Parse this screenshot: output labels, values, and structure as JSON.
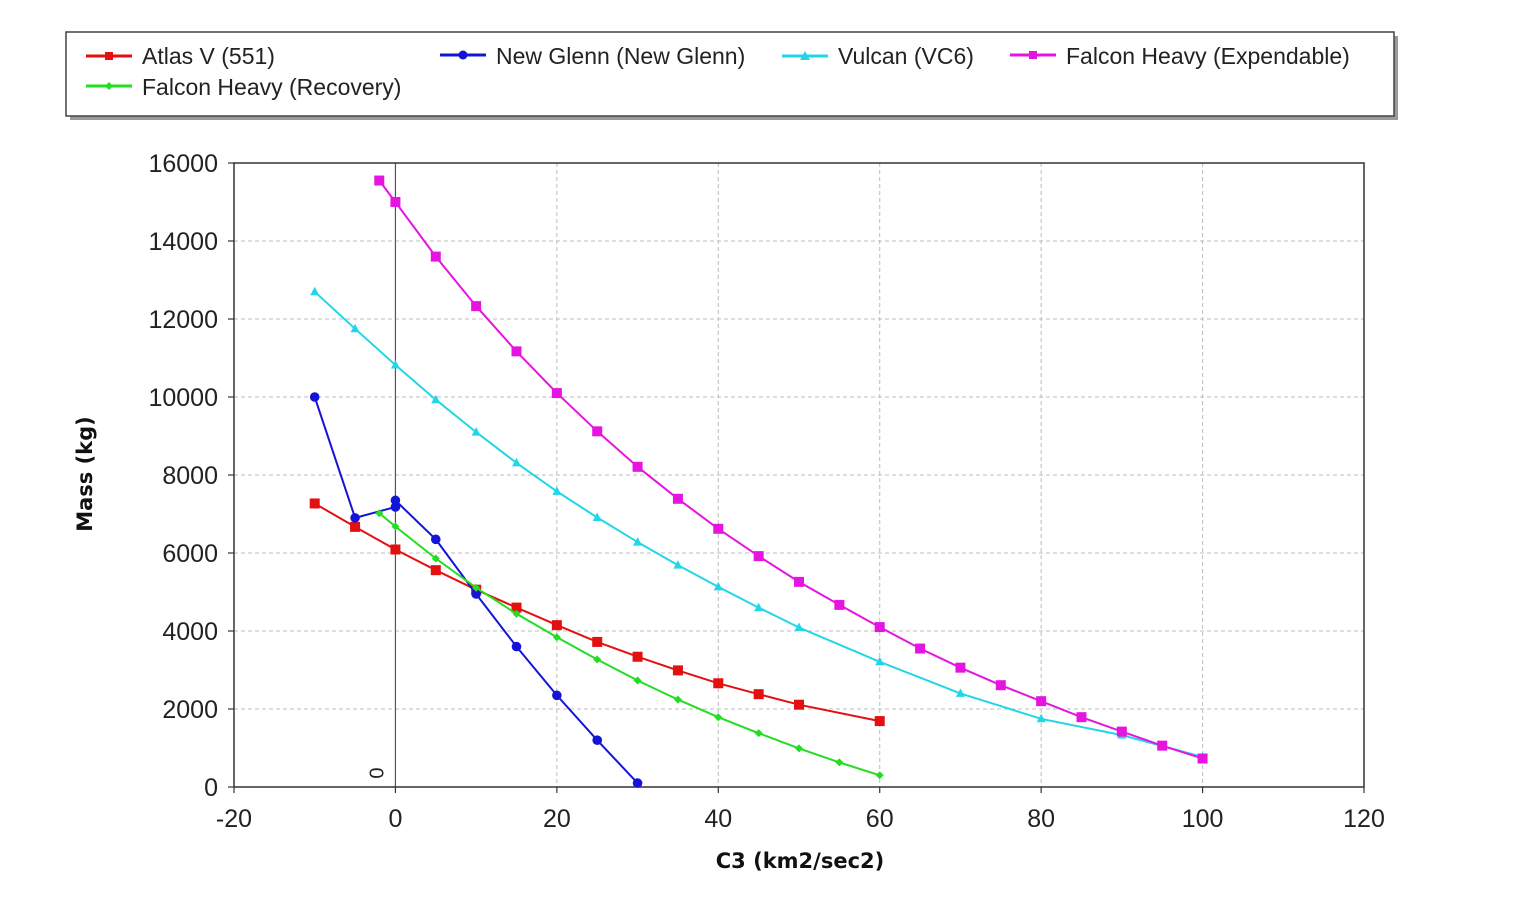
{
  "chart_data": {
    "type": "line",
    "title": "",
    "xlabel": "C3 (km2/sec2)",
    "ylabel": "Mass (kg)",
    "xlim": [
      -20,
      120
    ],
    "ylim": [
      0,
      16000
    ],
    "x_ticks": [
      "-20",
      "0",
      "20",
      "40",
      "60",
      "80",
      "100",
      "120"
    ],
    "y_ticks": [
      "0",
      "2000",
      "4000",
      "6000",
      "8000",
      "10000",
      "12000",
      "14000",
      "16000"
    ],
    "grid": true,
    "zero_line_label": "0",
    "legend_position": "top",
    "series": [
      {
        "name": "Atlas V (551)",
        "color": "#e41010",
        "marker": "square",
        "points": [
          [
            -10,
            7270
          ],
          [
            -5,
            6670
          ],
          [
            0,
            6090
          ],
          [
            5,
            5560
          ],
          [
            10,
            5060
          ],
          [
            15,
            4600
          ],
          [
            20,
            4150
          ],
          [
            25,
            3720
          ],
          [
            30,
            3340
          ],
          [
            35,
            2990
          ],
          [
            40,
            2660
          ],
          [
            45,
            2380
          ],
          [
            50,
            2110
          ],
          [
            60,
            1690
          ]
        ]
      },
      {
        "name": "New Glenn (New Glenn)",
        "color": "#1414d8",
        "marker": "circle",
        "points": [
          [
            -10,
            10000
          ],
          [
            -5,
            6900
          ],
          [
            0,
            7180
          ],
          [
            0,
            7350
          ],
          [
            5,
            6350
          ],
          [
            10,
            4950
          ],
          [
            15,
            3600
          ],
          [
            20,
            2350
          ],
          [
            25,
            1200
          ],
          [
            30,
            100
          ]
        ]
      },
      {
        "name": "Vulcan (VC6)",
        "color": "#22d6e8",
        "marker": "triangle",
        "points": [
          [
            -10,
            12700
          ],
          [
            -5,
            11750
          ],
          [
            0,
            10820
          ],
          [
            5,
            9930
          ],
          [
            10,
            9100
          ],
          [
            15,
            8310
          ],
          [
            20,
            7580
          ],
          [
            25,
            6910
          ],
          [
            30,
            6280
          ],
          [
            35,
            5690
          ],
          [
            40,
            5130
          ],
          [
            45,
            4600
          ],
          [
            50,
            4090
          ],
          [
            60,
            3210
          ],
          [
            70,
            2400
          ],
          [
            80,
            1750
          ],
          [
            90,
            1330
          ],
          [
            100,
            770
          ]
        ]
      },
      {
        "name": "Falcon Heavy (Expendable)",
        "color": "#e614e0",
        "marker": "square",
        "points": [
          [
            -2,
            15550
          ],
          [
            0,
            15000
          ],
          [
            5,
            13600
          ],
          [
            10,
            12330
          ],
          [
            15,
            11170
          ],
          [
            20,
            10100
          ],
          [
            25,
            9120
          ],
          [
            30,
            8210
          ],
          [
            35,
            7390
          ],
          [
            40,
            6620
          ],
          [
            45,
            5920
          ],
          [
            50,
            5260
          ],
          [
            55,
            4670
          ],
          [
            60,
            4100
          ],
          [
            65,
            3550
          ],
          [
            70,
            3060
          ],
          [
            75,
            2610
          ],
          [
            80,
            2200
          ],
          [
            85,
            1790
          ],
          [
            90,
            1420
          ],
          [
            95,
            1060
          ],
          [
            100,
            730
          ]
        ]
      },
      {
        "name": "Falcon Heavy (Recovery)",
        "color": "#22dd22",
        "marker": "diamond",
        "points": [
          [
            -2,
            7020
          ],
          [
            0,
            6680
          ],
          [
            5,
            5860
          ],
          [
            10,
            5110
          ],
          [
            15,
            4440
          ],
          [
            20,
            3840
          ],
          [
            25,
            3270
          ],
          [
            30,
            2730
          ],
          [
            35,
            2240
          ],
          [
            40,
            1790
          ],
          [
            45,
            1380
          ],
          [
            50,
            990
          ],
          [
            55,
            630
          ],
          [
            60,
            300
          ]
        ]
      }
    ]
  }
}
